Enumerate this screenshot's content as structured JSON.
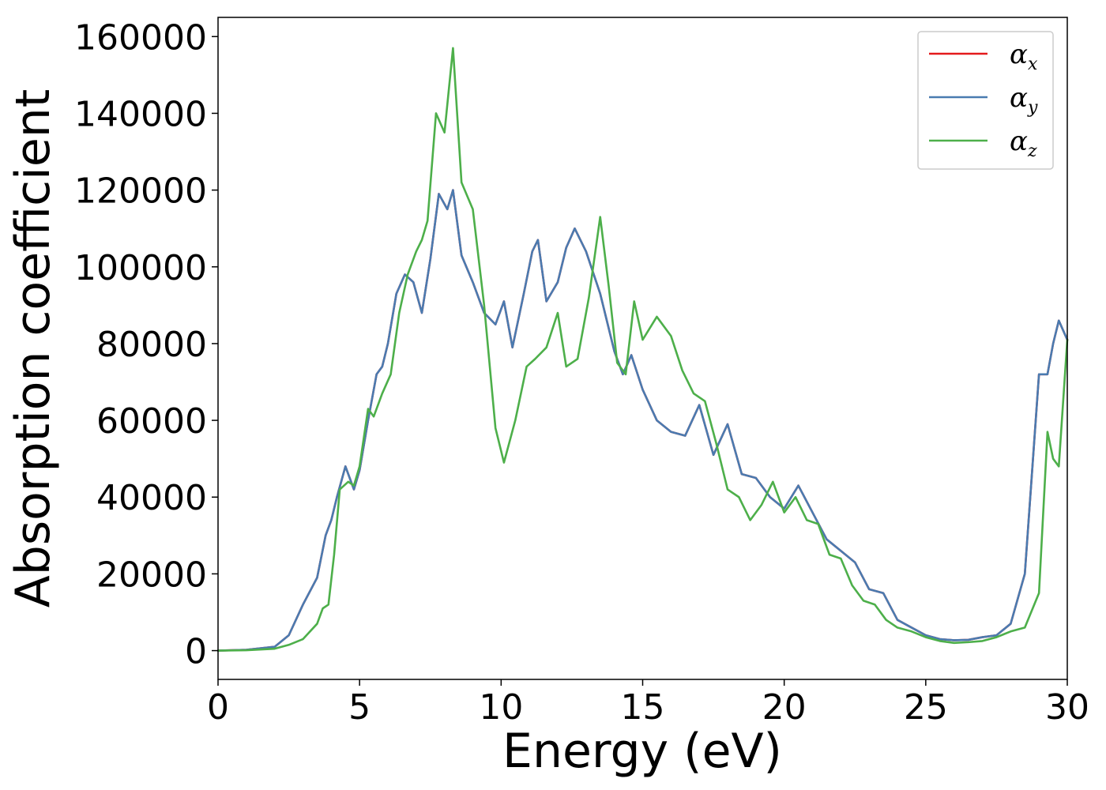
{
  "chart_data": {
    "type": "line",
    "xlabel": "Energy (eV)",
    "ylabel": "Absorption coefficient",
    "xlim": [
      0,
      30
    ],
    "ylim": [
      -7500,
      165000
    ],
    "xticks": [
      0,
      5,
      10,
      15,
      20,
      25,
      30
    ],
    "xtick_labels": [
      "0",
      "5",
      "10",
      "15",
      "20",
      "25",
      "30"
    ],
    "yticks": [
      0,
      20000,
      40000,
      60000,
      80000,
      100000,
      120000,
      140000,
      160000
    ],
    "ytick_labels": [
      "0",
      "20000",
      "40000",
      "60000",
      "80000",
      "100000",
      "120000",
      "140000",
      "160000"
    ],
    "grid": false,
    "legend_position": "top-right",
    "series": [
      {
        "name": "α",
        "subscript": "x",
        "color": "#e41a1c",
        "x": [
          0,
          1,
          2,
          2.5,
          3,
          3.5,
          3.8,
          4,
          4.2,
          4.5,
          4.8,
          5,
          5.3,
          5.6,
          5.8,
          6,
          6.3,
          6.6,
          6.9,
          7.2,
          7.5,
          7.8,
          8.1,
          8.3,
          8.6,
          9,
          9.4,
          9.8,
          10.1,
          10.4,
          10.8,
          11.1,
          11.3,
          11.6,
          12,
          12.3,
          12.6,
          13,
          13.5,
          14,
          14.3,
          14.6,
          15,
          15.5,
          16,
          16.5,
          17,
          17.5,
          18,
          18.5,
          19,
          19.5,
          20,
          20.5,
          21,
          21.5,
          22,
          22.5,
          23,
          23.5,
          24,
          24.5,
          25,
          25.5,
          26,
          26.5,
          27,
          27.5,
          28,
          28.5,
          29,
          29.3,
          29.5,
          29.7,
          30
        ],
        "y": [
          0,
          200,
          1000,
          4000,
          12000,
          19000,
          30000,
          34000,
          40000,
          48000,
          42000,
          47000,
          60000,
          72000,
          74000,
          80000,
          93000,
          98000,
          96000,
          88000,
          102000,
          119000,
          115000,
          120000,
          103000,
          96000,
          88000,
          85000,
          91000,
          79000,
          93000,
          104000,
          107000,
          91000,
          96000,
          105000,
          110000,
          104000,
          93000,
          78000,
          72000,
          77000,
          68000,
          60000,
          57000,
          56000,
          64000,
          51000,
          59000,
          46000,
          45000,
          40000,
          37000,
          43000,
          36000,
          29000,
          26000,
          23000,
          16000,
          15000,
          8000,
          6000,
          4000,
          3000,
          2700,
          2800,
          3500,
          4000,
          7000,
          20000,
          72000,
          72000,
          80000,
          86000,
          81000
        ]
      },
      {
        "name": "α",
        "subscript": "y",
        "color": "#4a7bb0",
        "x": [
          0,
          1,
          2,
          2.5,
          3,
          3.5,
          3.8,
          4,
          4.2,
          4.5,
          4.8,
          5,
          5.3,
          5.6,
          5.8,
          6,
          6.3,
          6.6,
          6.9,
          7.2,
          7.5,
          7.8,
          8.1,
          8.3,
          8.6,
          9,
          9.4,
          9.8,
          10.1,
          10.4,
          10.8,
          11.1,
          11.3,
          11.6,
          12,
          12.3,
          12.6,
          13,
          13.5,
          14,
          14.3,
          14.6,
          15,
          15.5,
          16,
          16.5,
          17,
          17.5,
          18,
          18.5,
          19,
          19.5,
          20,
          20.5,
          21,
          21.5,
          22,
          22.5,
          23,
          23.5,
          24,
          24.5,
          25,
          25.5,
          26,
          26.5,
          27,
          27.5,
          28,
          28.5,
          29,
          29.3,
          29.5,
          29.7,
          30
        ],
        "y": [
          0,
          200,
          1000,
          4000,
          12000,
          19000,
          30000,
          34000,
          40000,
          48000,
          42000,
          47000,
          60000,
          72000,
          74000,
          80000,
          93000,
          98000,
          96000,
          88000,
          102000,
          119000,
          115000,
          120000,
          103000,
          96000,
          88000,
          85000,
          91000,
          79000,
          93000,
          104000,
          107000,
          91000,
          96000,
          105000,
          110000,
          104000,
          93000,
          78000,
          72000,
          77000,
          68000,
          60000,
          57000,
          56000,
          64000,
          51000,
          59000,
          46000,
          45000,
          40000,
          37000,
          43000,
          36000,
          29000,
          26000,
          23000,
          16000,
          15000,
          8000,
          6000,
          4000,
          3000,
          2700,
          2800,
          3500,
          4000,
          7000,
          20000,
          72000,
          72000,
          80000,
          86000,
          81000
        ]
      },
      {
        "name": "α",
        "subscript": "z",
        "color": "#4daf4a",
        "x": [
          0,
          1,
          2,
          2.5,
          3,
          3.5,
          3.7,
          3.9,
          4.1,
          4.3,
          4.6,
          4.8,
          5,
          5.3,
          5.5,
          5.8,
          6.1,
          6.4,
          6.7,
          7,
          7.2,
          7.4,
          7.7,
          8,
          8.3,
          8.6,
          9,
          9.4,
          9.8,
          10.1,
          10.5,
          10.9,
          11.2,
          11.6,
          12,
          12.3,
          12.7,
          13.1,
          13.5,
          13.8,
          14.1,
          14.4,
          14.7,
          15,
          15.5,
          16,
          16.4,
          16.8,
          17.2,
          17.6,
          18,
          18.4,
          18.8,
          19.2,
          19.6,
          20,
          20.4,
          20.8,
          21.2,
          21.6,
          22,
          22.4,
          22.8,
          23.2,
          23.6,
          24,
          24.5,
          25,
          25.5,
          26,
          26.5,
          27,
          27.5,
          28,
          28.5,
          29,
          29.3,
          29.5,
          29.7,
          30
        ],
        "y": [
          0,
          100,
          500,
          1500,
          3000,
          7000,
          11000,
          12000,
          25000,
          42000,
          44000,
          43000,
          48000,
          63000,
          61000,
          67000,
          72000,
          88000,
          98000,
          104000,
          107000,
          112000,
          140000,
          135000,
          157000,
          122000,
          115000,
          90000,
          58000,
          49000,
          60000,
          74000,
          76000,
          79000,
          88000,
          74000,
          76000,
          92000,
          113000,
          95000,
          75000,
          72000,
          91000,
          81000,
          87000,
          82000,
          73000,
          67000,
          65000,
          54000,
          42000,
          40000,
          34000,
          38000,
          44000,
          36000,
          40000,
          34000,
          33000,
          25000,
          24000,
          17000,
          13000,
          12000,
          8000,
          6000,
          5000,
          3500,
          2500,
          2000,
          2200,
          2500,
          3500,
          5000,
          6000,
          15000,
          57000,
          50000,
          48000,
          81000
        ]
      }
    ]
  }
}
